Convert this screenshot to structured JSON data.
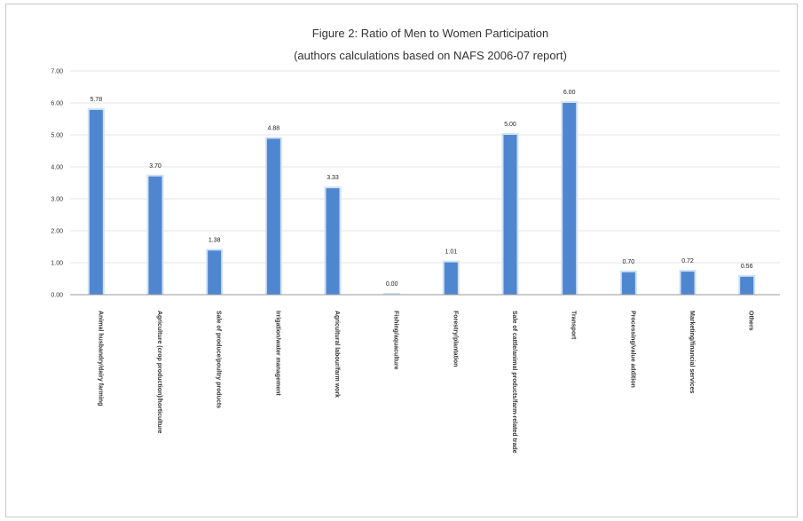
{
  "chart_data": {
    "type": "bar",
    "title": "Figure 2: Ratio of Men to Women Participation",
    "subtitle": "(authors calculations based on NAFS 2006-07 report)",
    "categories": [
      "Animal husbandry/dairy farming",
      "Agriculture (crop production)/horticulture",
      "Sale of produce/poultry products",
      "Irrigation/water management",
      "Agricultural labour/farm work",
      "Fishing/aquaculture",
      "Forestry/plantation",
      "Sale of cattle/animal products/farm-related trade",
      "Transport",
      "Processing/value addition",
      "Marketing/financial services",
      "Others"
    ],
    "values": [
      5.78,
      3.7,
      1.38,
      4.88,
      3.33,
      0.0,
      1.01,
      5.0,
      6.0,
      0.7,
      0.72,
      0.56
    ],
    "value_labels": [
      "5.78",
      "3.70",
      "1.38",
      "4.88",
      "3.33",
      "0.00",
      "1.01",
      "5.00",
      "6.00",
      "0.70",
      "0.72",
      "0.56"
    ],
    "yticks": [
      "0.00",
      "1.00",
      "2.00",
      "3.00",
      "4.00",
      "5.00",
      "6.00",
      "7.00"
    ],
    "ylim": [
      0,
      7
    ],
    "grid": true,
    "legend": "none",
    "colors": {
      "bar": "#4f86d0",
      "bar_edge": "#cfe1f7"
    }
  }
}
